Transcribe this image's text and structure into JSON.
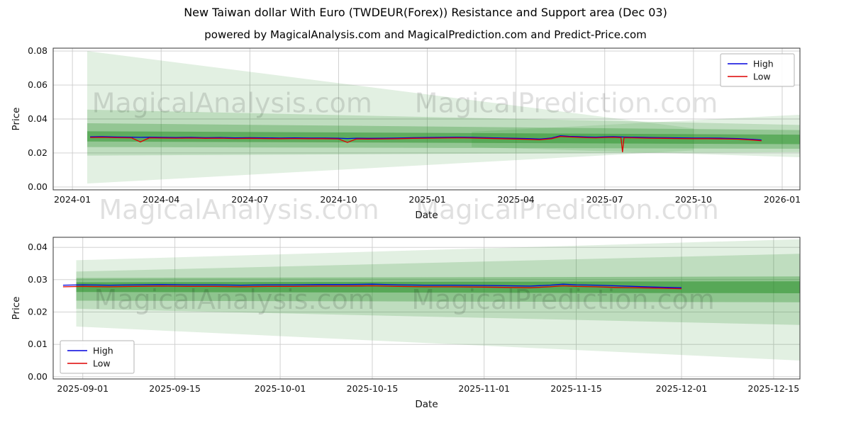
{
  "page": {
    "title": "New Taiwan dollar With Euro (TWDEUR(Forex)) Resistance and Support area (Dec 03)",
    "subtitle": "powered by MagicalAnalysis.com and MagicalPrediction.com and Predict-Price.com"
  },
  "colors": {
    "band": "#1f8b1f",
    "grid": "#cccccc",
    "spine": "#333333",
    "tick_text": "#111111",
    "watermark": "rgba(0,0,0,0.12)",
    "high": "#0000dd",
    "low": "#dd0000"
  },
  "figure_watermarks": [
    {
      "text": "MagicalAnalysis.com"
    },
    {
      "text": "MagicalPrediction.com"
    }
  ],
  "chart_data": [
    {
      "name": "overview-chart",
      "type": "line",
      "xlabel": "Date",
      "ylabel": "Price",
      "x_unit": "months since 2024-01",
      "xlim": [
        -0.65,
        24.6
      ],
      "ylim": [
        -0.0017,
        0.0817
      ],
      "grid": true,
      "xticks": [
        {
          "v": 0,
          "label": "2024-01"
        },
        {
          "v": 3,
          "label": "2024-04"
        },
        {
          "v": 6,
          "label": "2024-07"
        },
        {
          "v": 9,
          "label": "2024-10"
        },
        {
          "v": 12,
          "label": "2025-01"
        },
        {
          "v": 15,
          "label": "2025-04"
        },
        {
          "v": 18,
          "label": "2025-07"
        },
        {
          "v": 21,
          "label": "2025-10"
        },
        {
          "v": 24,
          "label": "2026-01"
        }
      ],
      "yticks": [
        {
          "v": 0.0,
          "label": "0.00"
        },
        {
          "v": 0.02,
          "label": "0.02"
        },
        {
          "v": 0.04,
          "label": "0.04"
        },
        {
          "v": 0.06,
          "label": "0.06"
        },
        {
          "v": 0.08,
          "label": "0.08"
        }
      ],
      "legend": {
        "loc": "upper-right"
      },
      "bands": [
        {
          "x0": 0.5,
          "lo0": 0.002,
          "hi0": 0.08,
          "x1": 21.0,
          "lo1": 0.0215,
          "hi1": 0.0345,
          "alpha": 0.13
        },
        {
          "x0": 13.5,
          "lo0": 0.0235,
          "hi0": 0.0325,
          "x1": 24.6,
          "lo1": 0.0175,
          "hi1": 0.0425,
          "alpha": 0.13
        },
        {
          "x0": 0.5,
          "lo0": 0.0185,
          "hi0": 0.0455,
          "x1": 24.6,
          "lo1": 0.0205,
          "hi1": 0.0365,
          "alpha": 0.18
        },
        {
          "x0": 0.5,
          "lo0": 0.0235,
          "hi0": 0.0375,
          "x1": 24.6,
          "lo1": 0.0225,
          "hi1": 0.0335,
          "alpha": 0.28
        },
        {
          "x0": 0.5,
          "lo0": 0.0268,
          "hi0": 0.0328,
          "x1": 24.6,
          "lo1": 0.0252,
          "hi1": 0.0308,
          "alpha": 0.45
        }
      ],
      "watermarks": [
        {
          "x": 5.4,
          "y": 0.044,
          "text": "MagicalAnalysis.com"
        },
        {
          "x": 16.7,
          "y": 0.044,
          "text": "MagicalPrediction.com"
        }
      ],
      "series": [
        {
          "name": "High",
          "color": "#0000dd",
          "points": [
            [
              0.6,
              0.0295
            ],
            [
              1,
              0.0296
            ],
            [
              1.5,
              0.0294
            ],
            [
              2,
              0.0293
            ],
            [
              2.3,
              0.0292
            ],
            [
              2.6,
              0.0293
            ],
            [
              3,
              0.0292
            ],
            [
              3.5,
              0.0291
            ],
            [
              4,
              0.0292
            ],
            [
              4.5,
              0.029
            ],
            [
              5,
              0.0291
            ],
            [
              5.5,
              0.0289
            ],
            [
              6,
              0.029
            ],
            [
              6.5,
              0.0289
            ],
            [
              7,
              0.0288
            ],
            [
              7.5,
              0.0289
            ],
            [
              8,
              0.0288
            ],
            [
              8.5,
              0.0288
            ],
            [
              9,
              0.0287
            ],
            [
              9.3,
              0.0285
            ],
            [
              9.6,
              0.0287
            ],
            [
              10,
              0.0286
            ],
            [
              10.5,
              0.0287
            ],
            [
              11,
              0.0288
            ],
            [
              11.5,
              0.029
            ],
            [
              12,
              0.0291
            ],
            [
              12.5,
              0.0292
            ],
            [
              13,
              0.0293
            ],
            [
              13.5,
              0.0292
            ],
            [
              14,
              0.029
            ],
            [
              14.5,
              0.0288
            ],
            [
              15,
              0.0286
            ],
            [
              15.5,
              0.0284
            ],
            [
              15.8,
              0.0282
            ],
            [
              16.2,
              0.0288
            ],
            [
              16.5,
              0.0301
            ],
            [
              16.8,
              0.0298
            ],
            [
              17.1,
              0.0296
            ],
            [
              17.4,
              0.0294
            ],
            [
              17.7,
              0.0293
            ],
            [
              18,
              0.0295
            ],
            [
              18.3,
              0.0296
            ],
            [
              18.6,
              0.0294
            ],
            [
              19,
              0.0293
            ],
            [
              19.5,
              0.0291
            ],
            [
              20,
              0.029
            ],
            [
              20.5,
              0.0289
            ],
            [
              21,
              0.0288
            ],
            [
              21.5,
              0.0288
            ],
            [
              22,
              0.0287
            ],
            [
              22.5,
              0.0285
            ],
            [
              23,
              0.028
            ],
            [
              23.3,
              0.0276
            ]
          ]
        },
        {
          "name": "Low",
          "color": "#dd0000",
          "points": [
            [
              0.6,
              0.0291
            ],
            [
              1,
              0.0292
            ],
            [
              1.5,
              0.029
            ],
            [
              2,
              0.0289
            ],
            [
              2.3,
              0.0265
            ],
            [
              2.6,
              0.0289
            ],
            [
              3,
              0.0288
            ],
            [
              3.5,
              0.0287
            ],
            [
              4,
              0.0288
            ],
            [
              4.5,
              0.0286
            ],
            [
              5,
              0.0287
            ],
            [
              5.5,
              0.0285
            ],
            [
              6,
              0.0286
            ],
            [
              6.5,
              0.0285
            ],
            [
              7,
              0.0284
            ],
            [
              7.5,
              0.0285
            ],
            [
              8,
              0.0284
            ],
            [
              8.5,
              0.0284
            ],
            [
              9,
              0.0283
            ],
            [
              9.3,
              0.0262
            ],
            [
              9.6,
              0.0283
            ],
            [
              10,
              0.0282
            ],
            [
              10.5,
              0.0283
            ],
            [
              11,
              0.0284
            ],
            [
              11.5,
              0.0286
            ],
            [
              12,
              0.0287
            ],
            [
              12.5,
              0.0288
            ],
            [
              13,
              0.0289
            ],
            [
              13.5,
              0.0288
            ],
            [
              14,
              0.0286
            ],
            [
              14.5,
              0.0284
            ],
            [
              15,
              0.0282
            ],
            [
              15.5,
              0.028
            ],
            [
              15.8,
              0.0278
            ],
            [
              16.2,
              0.0284
            ],
            [
              16.5,
              0.0297
            ],
            [
              16.8,
              0.0294
            ],
            [
              17.1,
              0.0292
            ],
            [
              17.4,
              0.029
            ],
            [
              17.7,
              0.0289
            ],
            [
              18,
              0.0291
            ],
            [
              18.3,
              0.0292
            ],
            [
              18.55,
              0.029
            ],
            [
              18.6,
              0.0205
            ],
            [
              18.65,
              0.029
            ],
            [
              19,
              0.0289
            ],
            [
              19.5,
              0.0287
            ],
            [
              20,
              0.0286
            ],
            [
              20.5,
              0.0285
            ],
            [
              21,
              0.0284
            ],
            [
              21.5,
              0.0284
            ],
            [
              22,
              0.0283
            ],
            [
              22.5,
              0.0281
            ],
            [
              23,
              0.0276
            ],
            [
              23.3,
              0.0272
            ]
          ]
        }
      ]
    },
    {
      "name": "recent-chart",
      "type": "line",
      "xlabel": "Date",
      "ylabel": "Price",
      "x_unit": "days since 2025-09-01",
      "xlim": [
        -4.5,
        109
      ],
      "ylim": [
        -0.0007,
        0.0431
      ],
      "grid": true,
      "xticks": [
        {
          "v": 0,
          "label": "2025-09-01"
        },
        {
          "v": 14,
          "label": "2025-09-15"
        },
        {
          "v": 30,
          "label": "2025-10-01"
        },
        {
          "v": 44,
          "label": "2025-10-15"
        },
        {
          "v": 61,
          "label": "2025-11-01"
        },
        {
          "v": 75,
          "label": "2025-11-15"
        },
        {
          "v": 91,
          "label": "2025-12-01"
        },
        {
          "v": 105,
          "label": "2025-12-15"
        }
      ],
      "yticks": [
        {
          "v": 0.0,
          "label": "0.00"
        },
        {
          "v": 0.01,
          "label": "0.01"
        },
        {
          "v": 0.02,
          "label": "0.02"
        },
        {
          "v": 0.03,
          "label": "0.03"
        },
        {
          "v": 0.04,
          "label": "0.04"
        }
      ],
      "legend": {
        "loc": "lower-left"
      },
      "bands": [
        {
          "x0": -1,
          "lo0": 0.0155,
          "hi0": 0.036,
          "x1": 109,
          "lo1": 0.005,
          "hi1": 0.0425,
          "alpha": 0.13
        },
        {
          "x0": -1,
          "lo0": 0.021,
          "hi0": 0.0325,
          "x1": 109,
          "lo1": 0.016,
          "hi1": 0.038,
          "alpha": 0.18
        },
        {
          "x0": -1,
          "lo0": 0.0235,
          "hi0": 0.0305,
          "x1": 109,
          "lo1": 0.023,
          "hi1": 0.031,
          "alpha": 0.3
        },
        {
          "x0": -1,
          "lo0": 0.0262,
          "hi0": 0.0292,
          "x1": 109,
          "lo1": 0.0258,
          "hi1": 0.0295,
          "alpha": 0.5
        }
      ],
      "watermarks": [
        {
          "x": 23,
          "y": 0.021,
          "text": "MagicalAnalysis.com"
        },
        {
          "x": 73,
          "y": 0.021,
          "text": "MagicalPrediction.com"
        }
      ],
      "series": [
        {
          "name": "High",
          "color": "#0000dd",
          "points": [
            [
              -3,
              0.0283
            ],
            [
              0,
              0.0284
            ],
            [
              4,
              0.0283
            ],
            [
              8,
              0.0284
            ],
            [
              12,
              0.0285
            ],
            [
              16,
              0.0284
            ],
            [
              20,
              0.0284
            ],
            [
              24,
              0.0283
            ],
            [
              28,
              0.0284
            ],
            [
              32,
              0.0284
            ],
            [
              36,
              0.0285
            ],
            [
              40,
              0.0285
            ],
            [
              44,
              0.0286
            ],
            [
              48,
              0.0284
            ],
            [
              52,
              0.0283
            ],
            [
              56,
              0.0283
            ],
            [
              61,
              0.0282
            ],
            [
              65,
              0.0281
            ],
            [
              68,
              0.028
            ],
            [
              71,
              0.0283
            ],
            [
              73,
              0.0286
            ],
            [
              75,
              0.0284
            ],
            [
              78,
              0.0283
            ],
            [
              81,
              0.0281
            ],
            [
              84,
              0.0279
            ],
            [
              87,
              0.0277
            ],
            [
              89,
              0.0276
            ],
            [
              91,
              0.0275
            ]
          ]
        },
        {
          "name": "Low",
          "color": "#dd0000",
          "points": [
            [
              -3,
              0.0278
            ],
            [
              0,
              0.0279
            ],
            [
              4,
              0.0278
            ],
            [
              8,
              0.0279
            ],
            [
              12,
              0.028
            ],
            [
              16,
              0.0279
            ],
            [
              20,
              0.0279
            ],
            [
              24,
              0.0278
            ],
            [
              28,
              0.0279
            ],
            [
              32,
              0.0279
            ],
            [
              36,
              0.028
            ],
            [
              40,
              0.028
            ],
            [
              44,
              0.0281
            ],
            [
              48,
              0.0279
            ],
            [
              52,
              0.0278
            ],
            [
              56,
              0.0278
            ],
            [
              61,
              0.0277
            ],
            [
              65,
              0.0276
            ],
            [
              68,
              0.0275
            ],
            [
              71,
              0.0278
            ],
            [
              73,
              0.0281
            ],
            [
              75,
              0.0279
            ],
            [
              78,
              0.0278
            ],
            [
              81,
              0.0276
            ],
            [
              84,
              0.0275
            ],
            [
              87,
              0.0274
            ],
            [
              89,
              0.0273
            ],
            [
              91,
              0.0272
            ]
          ]
        }
      ]
    }
  ]
}
